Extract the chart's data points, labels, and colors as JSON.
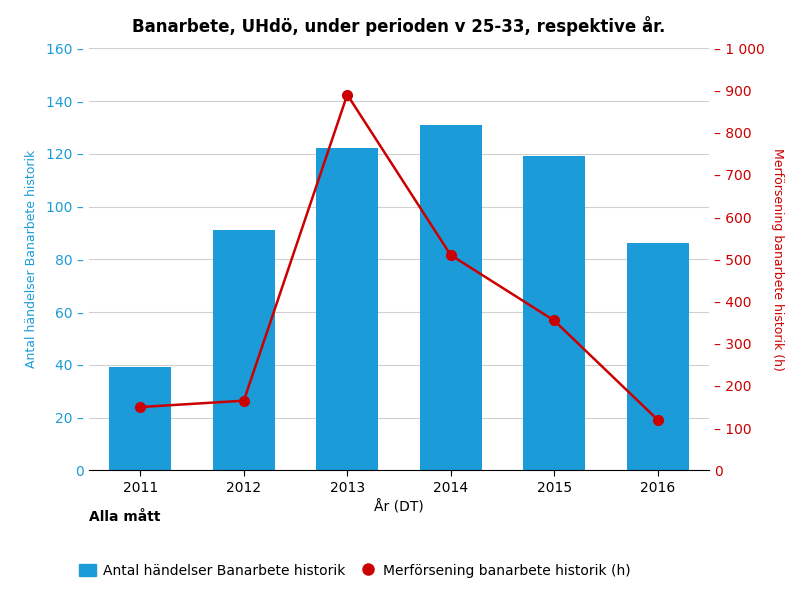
{
  "title": "Banarbete, UHdö, under perioden v 25-33, respektive år.",
  "years": [
    2011,
    2012,
    2013,
    2014,
    2015,
    2016
  ],
  "bar_values": [
    39,
    91,
    122,
    131,
    119,
    86
  ],
  "line_values": [
    150,
    165,
    890,
    510,
    355,
    120
  ],
  "bar_color": "#1b9cd8",
  "line_color": "#cc0000",
  "xlabel": "År (DT)",
  "ylabel_left": "Antal händelser Banarbete historik",
  "ylabel_right": "Merförsening banarbete historik (h)",
  "ylim_left": [
    0,
    160
  ],
  "ylim_right": [
    0,
    1000
  ],
  "yticks_left": [
    0,
    20,
    40,
    60,
    80,
    100,
    120,
    140,
    160
  ],
  "yticks_right": [
    0,
    100,
    200,
    300,
    400,
    500,
    600,
    700,
    800,
    900,
    1000
  ],
  "legend_title": "Alla mått",
  "legend_bar_label": "Antal händelser Banarbete historik",
  "legend_line_label": "Merförsening banarbete historik (h)",
  "background_color": "#ffffff",
  "title_fontsize": 12,
  "axis_label_fontsize": 9,
  "tick_fontsize": 10,
  "legend_fontsize": 10,
  "bar_width": 0.6
}
